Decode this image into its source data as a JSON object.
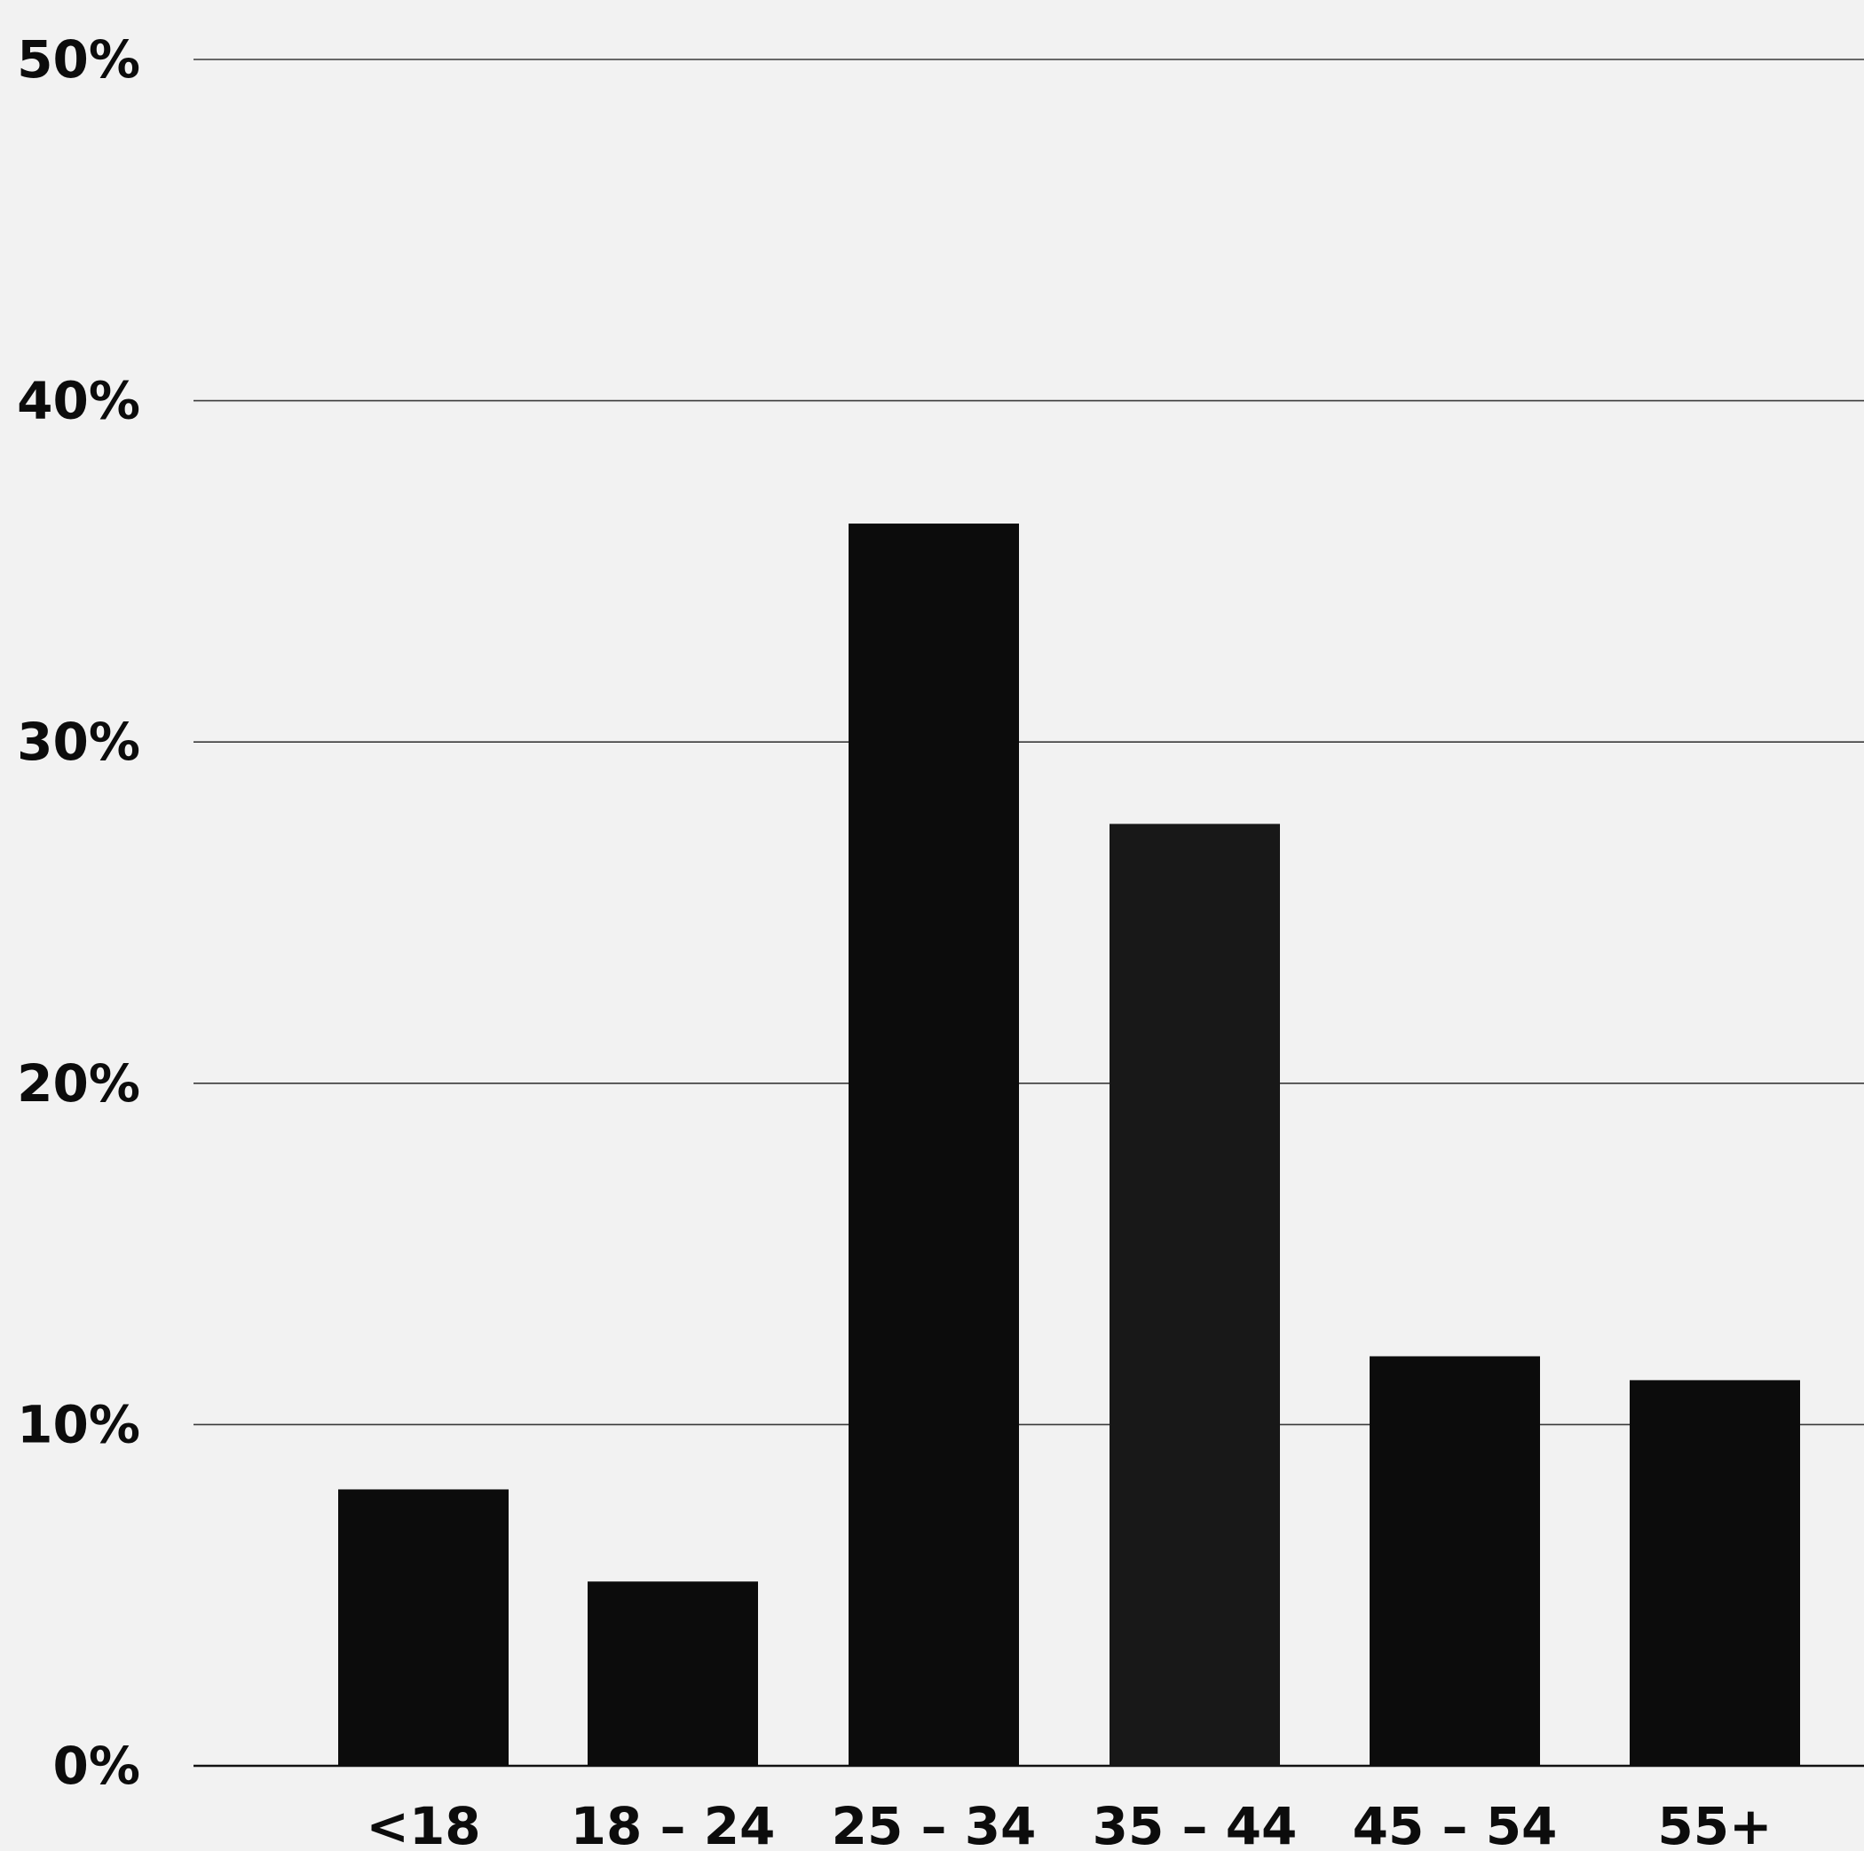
{
  "chart_data": {
    "type": "bar",
    "title": "",
    "xlabel": "",
    "ylabel": "",
    "categories": [
      "<18",
      "18 – 24",
      "25 – 34",
      "35 – 44",
      "45 – 54",
      "55+"
    ],
    "values": [
      8.1,
      5.4,
      36.4,
      27.6,
      12.0,
      11.3
    ],
    "ylim": [
      0,
      50
    ],
    "y_ticks": [
      0,
      10,
      20,
      30,
      40,
      50
    ],
    "y_tick_labels": [
      "0%",
      "10%",
      "20%",
      "30%",
      "40%",
      "50%"
    ],
    "grid": true,
    "legend": "none",
    "colors": {
      "background": "#f2f2f2",
      "bars": [
        "#0c0c0c",
        "#0c0c0c",
        "#0c0c0c",
        "#181818",
        "#0c0c0c",
        "#0c0c0c"
      ],
      "gridline": "#3a3a3a",
      "text": "#0c0c0c"
    }
  }
}
